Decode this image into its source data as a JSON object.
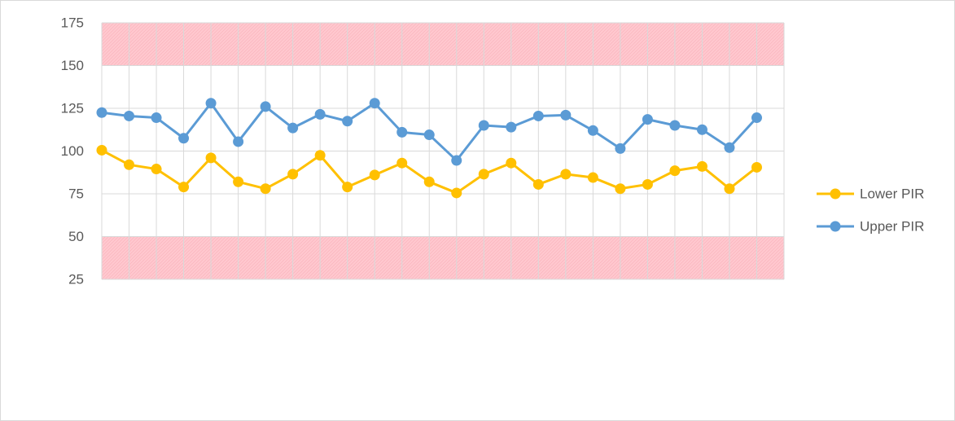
{
  "chart_data": {
    "type": "line",
    "title": "",
    "xlabel": "",
    "ylabel": "",
    "x": [
      1,
      2,
      3,
      4,
      5,
      6,
      7,
      8,
      9,
      10,
      11,
      12,
      13,
      14,
      15,
      16,
      17,
      18,
      19,
      20,
      21,
      22,
      23,
      24,
      25
    ],
    "ylim": [
      25,
      175
    ],
    "yticks": [
      25,
      50,
      75,
      100,
      125,
      150,
      175
    ],
    "grid": true,
    "legend_position": "right",
    "shaded_bands": [
      {
        "from": 150,
        "to": 175,
        "color": "#ffc7ce"
      },
      {
        "from": 25,
        "to": 50,
        "color": "#ffc7ce"
      }
    ],
    "series": [
      {
        "name": "Lower PIR",
        "color": "#ffc000",
        "values": [
          100.5,
          92,
          89.5,
          79,
          96,
          82,
          78,
          86.5,
          97.5,
          79,
          86,
          93,
          82,
          75.5,
          86.5,
          93,
          80.5,
          86.5,
          84.5,
          78,
          80.5,
          88.5,
          91,
          78,
          90.5
        ]
      },
      {
        "name": "Upper PIR",
        "color": "#5b9bd5",
        "values": [
          122.5,
          120.5,
          119.5,
          107.5,
          128,
          105.5,
          126,
          113.5,
          121.5,
          117.5,
          128,
          111,
          109.5,
          94.5,
          115,
          114,
          120.5,
          121,
          112,
          101.5,
          118.5,
          115,
          112.5,
          102,
          119.5
        ]
      }
    ]
  }
}
